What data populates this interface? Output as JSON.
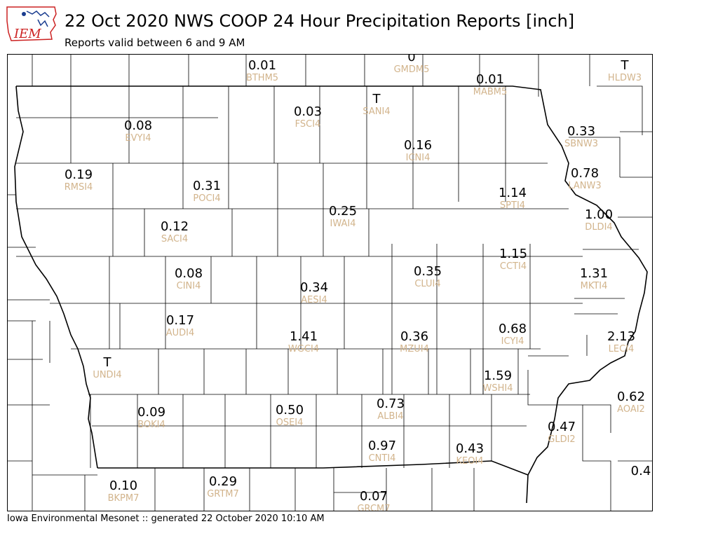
{
  "header": {
    "title": "22 Oct 2020 NWS COOP 24 Hour Precipitation Reports [inch]",
    "subtitle": "Reports valid between 6 and 9 AM",
    "logo_text": "IEM"
  },
  "footer": {
    "text": "Iowa Environmental Mesonet :: generated 22 October 2020 10:10 AM"
  },
  "colors": {
    "station_id": "#d2b48c",
    "value": "#000000",
    "boundary": "#000000",
    "logo_red": "#cc2222",
    "logo_blue": "#1a3c8f"
  },
  "stations": [
    {
      "id": "BTHM5",
      "value": "0.01"
    },
    {
      "id": "GMDM5",
      "value": "0"
    },
    {
      "id": "HLDW3",
      "value": "T"
    },
    {
      "id": "MABM5",
      "value": "0.01"
    },
    {
      "id": "SANI4",
      "value": "T"
    },
    {
      "id": "FSCI4",
      "value": "0.03"
    },
    {
      "id": "EVYI4",
      "value": "0.08"
    },
    {
      "id": "SBNW3",
      "value": "0.33"
    },
    {
      "id": "ICNI4",
      "value": "0.16"
    },
    {
      "id": "RMSI4",
      "value": "0.19"
    },
    {
      "id": "LANW3",
      "value": "0.78"
    },
    {
      "id": "POCI4",
      "value": "0.31"
    },
    {
      "id": "SPTI4",
      "value": "1.14"
    },
    {
      "id": "IWAI4",
      "value": "0.25"
    },
    {
      "id": "DLDI4",
      "value": "1.00"
    },
    {
      "id": "SACI4",
      "value": "0.12"
    },
    {
      "id": "CCTI4",
      "value": "1.15"
    },
    {
      "id": "CINI4",
      "value": "0.08"
    },
    {
      "id": "CLUI4",
      "value": "0.35"
    },
    {
      "id": "MKTI4",
      "value": "1.31"
    },
    {
      "id": "AESI4",
      "value": "0.34"
    },
    {
      "id": "AUDI4",
      "value": "0.17"
    },
    {
      "id": "ICYI4",
      "value": "0.68"
    },
    {
      "id": "WGCI4",
      "value": "1.41"
    },
    {
      "id": "MZUI4",
      "value": "0.36"
    },
    {
      "id": "LECI4",
      "value": "2.13"
    },
    {
      "id": "UNDI4",
      "value": "T"
    },
    {
      "id": "WSHI4",
      "value": "1.59"
    },
    {
      "id": "AOAI2",
      "value": "0.62"
    },
    {
      "id": "ALBI4",
      "value": "0.73"
    },
    {
      "id": "BOKI4",
      "value": "0.09"
    },
    {
      "id": "OSEI4",
      "value": "0.50"
    },
    {
      "id": "GLDI2",
      "value": "0.47"
    },
    {
      "id": "CNTI4",
      "value": "0.97"
    },
    {
      "id": "KEOI4",
      "value": "0.43"
    },
    {
      "id": "",
      "value": "0.4"
    },
    {
      "id": "BKPM7",
      "value": "0.10"
    },
    {
      "id": "GRTM7",
      "value": "0.29"
    },
    {
      "id": "GRCM7",
      "value": "0.07"
    }
  ]
}
